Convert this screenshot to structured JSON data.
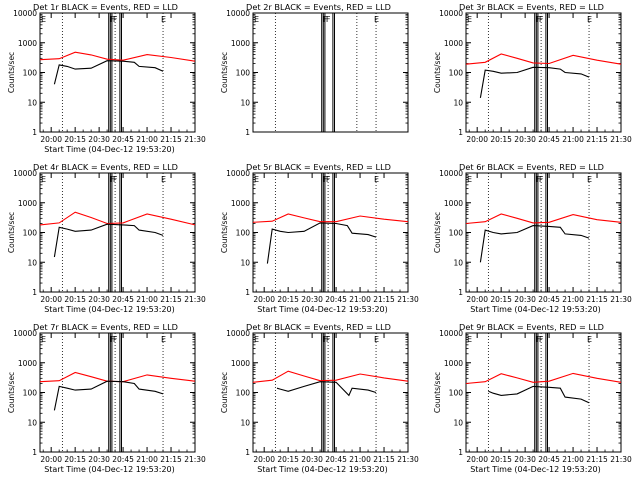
{
  "chart_data": [
    {
      "type": "line",
      "title": "Det 1r BLACK = Events, RED = LLD",
      "xlabel": "Start Time (04-Dec-12 19:53:20)",
      "ylabel": "Counts/sec",
      "yscale": "log",
      "ylim": [
        1,
        10000
      ],
      "yticks": [
        "1",
        "10",
        "100",
        "1000",
        "10000"
      ],
      "xticks": [
        "20:00",
        "20:15",
        "20:30",
        "20:45",
        "21:00",
        "21:15",
        "21:30"
      ],
      "xlim": [
        "19:53",
        "21:30"
      ],
      "vlines_dotted": [
        "20:07",
        "20:40",
        "21:10"
      ],
      "vlines_solid": [
        "20:36",
        "20:37",
        "20:38",
        "20:43",
        "20:44"
      ],
      "markers": [
        "F",
        "F",
        "E"
      ],
      "series": [
        {
          "color": "#ff0000",
          "x": [
            "19:53",
            "20:05",
            "20:15",
            "20:25",
            "20:35",
            "20:45",
            "21:00",
            "21:15",
            "21:30"
          ],
          "y": [
            270,
            290,
            480,
            390,
            280,
            260,
            400,
            320,
            240
          ]
        },
        {
          "color": "#000000",
          "x": [
            "20:02",
            "20:05",
            "20:10",
            "20:15",
            "20:25",
            "20:35",
            "20:45",
            "20:52",
            "20:55",
            "21:05",
            "21:10"
          ],
          "y": [
            40,
            180,
            160,
            130,
            140,
            250,
            240,
            220,
            160,
            145,
            110
          ]
        }
      ]
    },
    {
      "type": "line",
      "title": "Det 2r BLACK = Events, RED = LLD",
      "xlabel": "",
      "ylabel": "Counts/sec",
      "yscale": "log",
      "ylim": [
        1,
        10000
      ],
      "yticks": [
        "1",
        "10",
        "100",
        "1000",
        "10000"
      ],
      "xticks": [],
      "xlim": [
        "19:53",
        "21:30"
      ],
      "vlines_dotted": [
        "20:07",
        "20:58",
        "21:10"
      ],
      "vlines_solid": [
        "20:36",
        "20:37",
        "20:38",
        "20:43",
        "20:44"
      ],
      "markers": [
        "F",
        "F",
        "E"
      ],
      "series": []
    },
    {
      "type": "line",
      "title": "Det 3r BLACK = Events, RED = LLD",
      "xlabel": "",
      "ylabel": "Counts/sec",
      "yscale": "log",
      "ylim": [
        1,
        10000
      ],
      "yticks": [
        "1",
        "10",
        "100",
        "1000",
        "10000"
      ],
      "xticks": [
        "20:00",
        "20:15",
        "20:30",
        "20:45",
        "21:00",
        "21:15",
        "21:30"
      ],
      "xlim": [
        "19:53",
        "21:30"
      ],
      "vlines_dotted": [
        "20:07",
        "20:40",
        "21:10"
      ],
      "vlines_solid": [
        "20:36",
        "20:37",
        "20:38",
        "20:43",
        "20:44"
      ],
      "markers": [
        "F",
        "F",
        "E"
      ],
      "series": [
        {
          "color": "#ff0000",
          "x": [
            "19:53",
            "20:05",
            "20:15",
            "20:25",
            "20:35",
            "20:45",
            "21:00",
            "21:15",
            "21:30"
          ],
          "y": [
            190,
            220,
            420,
            300,
            210,
            200,
            380,
            260,
            190
          ]
        },
        {
          "color": "#000000",
          "x": [
            "20:02",
            "20:05",
            "20:10",
            "20:15",
            "20:25",
            "20:35",
            "20:45",
            "20:52",
            "20:55",
            "21:05",
            "21:10"
          ],
          "y": [
            14,
            120,
            110,
            95,
            100,
            150,
            145,
            130,
            100,
            90,
            70
          ]
        }
      ]
    },
    {
      "type": "line",
      "title": "Det 4r BLACK = Events, RED = LLD",
      "xlabel": "Start Time (04-Dec-12 19:53:20)",
      "ylabel": "Counts/sec",
      "yscale": "log",
      "ylim": [
        1,
        10000
      ],
      "yticks": [
        "1",
        "10",
        "100",
        "1000",
        "10000"
      ],
      "xticks": [
        "20:00",
        "20:15",
        "20:30",
        "20:45",
        "21:00",
        "21:15",
        "21:30"
      ],
      "xlim": [
        "19:53",
        "21:30"
      ],
      "vlines_dotted": [
        "20:07",
        "20:40",
        "21:10"
      ],
      "vlines_solid": [
        "20:36",
        "20:37",
        "20:38",
        "20:43",
        "20:44"
      ],
      "markers": [
        "F",
        "F",
        "E"
      ],
      "series": [
        {
          "color": "#ff0000",
          "x": [
            "19:53",
            "20:05",
            "20:15",
            "20:25",
            "20:35",
            "20:45",
            "21:00",
            "21:15",
            "21:30"
          ],
          "y": [
            180,
            210,
            480,
            320,
            200,
            210,
            420,
            280,
            180
          ]
        },
        {
          "color": "#000000",
          "x": [
            "20:02",
            "20:05",
            "20:10",
            "20:15",
            "20:25",
            "20:35",
            "20:45",
            "20:52",
            "20:55",
            "21:05",
            "21:10"
          ],
          "y": [
            15,
            150,
            130,
            110,
            120,
            190,
            180,
            170,
            120,
            100,
            80
          ]
        }
      ]
    },
    {
      "type": "line",
      "title": "Det 5r BLACK = Events, RED = LLD",
      "xlabel": "Start Time (04-Dec-12 19:53:20)",
      "ylabel": "Counts/sec",
      "yscale": "log",
      "ylim": [
        1,
        10000
      ],
      "yticks": [
        "1",
        "10",
        "100",
        "1000",
        "10000"
      ],
      "xticks": [
        "20:00",
        "20:15",
        "20:30",
        "20:45",
        "21:00",
        "21:15",
        "21:30"
      ],
      "xlim": [
        "19:53",
        "21:30"
      ],
      "vlines_dotted": [
        "20:07",
        "20:40",
        "21:10"
      ],
      "vlines_solid": [
        "20:36",
        "20:37",
        "20:38",
        "20:43",
        "20:44"
      ],
      "markers": [
        "F",
        "F",
        "E"
      ],
      "series": [
        {
          "color": "#ff0000",
          "x": [
            "19:53",
            "20:05",
            "20:15",
            "20:25",
            "20:35",
            "20:45",
            "21:00",
            "21:15",
            "21:30"
          ],
          "y": [
            220,
            240,
            420,
            310,
            230,
            230,
            360,
            280,
            230
          ]
        },
        {
          "color": "#000000",
          "x": [
            "20:02",
            "20:05",
            "20:10",
            "20:15",
            "20:25",
            "20:35",
            "20:45",
            "20:52",
            "20:55",
            "21:05",
            "21:10"
          ],
          "y": [
            9,
            130,
            110,
            100,
            110,
            210,
            200,
            170,
            95,
            85,
            70
          ]
        }
      ]
    },
    {
      "type": "line",
      "title": "Det 6r BLACK = Events, RED = LLD",
      "xlabel": "Start Time (04-Dec-12 19:53:20)",
      "ylabel": "Counts/sec",
      "yscale": "log",
      "ylim": [
        1,
        10000
      ],
      "yticks": [
        "1",
        "10",
        "100",
        "1000",
        "10000"
      ],
      "xticks": [
        "20:00",
        "20:15",
        "20:30",
        "20:45",
        "21:00",
        "21:15",
        "21:30"
      ],
      "xlim": [
        "19:53",
        "21:30"
      ],
      "vlines_dotted": [
        "20:07",
        "20:40",
        "21:10"
      ],
      "vlines_solid": [
        "20:36",
        "20:37",
        "20:38",
        "20:43",
        "20:44"
      ],
      "markers": [
        "F",
        "F",
        "E"
      ],
      "series": [
        {
          "color": "#ff0000",
          "x": [
            "19:53",
            "20:05",
            "20:15",
            "20:25",
            "20:35",
            "20:45",
            "21:00",
            "21:15",
            "21:30"
          ],
          "y": [
            200,
            230,
            420,
            300,
            210,
            220,
            400,
            270,
            220
          ]
        },
        {
          "color": "#000000",
          "x": [
            "20:02",
            "20:05",
            "20:10",
            "20:15",
            "20:25",
            "20:35",
            "20:45",
            "20:52",
            "20:55",
            "21:05",
            "21:10"
          ],
          "y": [
            10,
            120,
            100,
            90,
            100,
            170,
            160,
            150,
            90,
            80,
            65
          ]
        }
      ]
    },
    {
      "type": "line",
      "title": "Det 7r BLACK = Events, RED = LLD",
      "xlabel": "Start Time (04-Dec-12 19:53:20)",
      "ylabel": "Counts/sec",
      "yscale": "log",
      "ylim": [
        1,
        10000
      ],
      "yticks": [
        "1",
        "10",
        "100",
        "1000",
        "10000"
      ],
      "xticks": [
        "20:00",
        "20:15",
        "20:30",
        "20:45",
        "21:00",
        "21:15",
        "21:30"
      ],
      "xlim": [
        "19:53",
        "21:30"
      ],
      "vlines_dotted": [
        "20:07",
        "20:40",
        "21:10"
      ],
      "vlines_solid": [
        "20:36",
        "20:37",
        "20:38",
        "20:43",
        "20:44"
      ],
      "markers": [
        "F",
        "F",
        "E"
      ],
      "series": [
        {
          "color": "#ff0000",
          "x": [
            "19:53",
            "20:05",
            "20:15",
            "20:25",
            "20:35",
            "20:45",
            "21:00",
            "21:15",
            "21:30"
          ],
          "y": [
            230,
            250,
            470,
            340,
            240,
            230,
            390,
            300,
            240
          ]
        },
        {
          "color": "#000000",
          "x": [
            "20:02",
            "20:05",
            "20:10",
            "20:15",
            "20:25",
            "20:35",
            "20:45",
            "20:52",
            "20:55",
            "21:05",
            "21:10"
          ],
          "y": [
            25,
            160,
            140,
            120,
            130,
            240,
            230,
            200,
            130,
            110,
            90
          ]
        }
      ]
    },
    {
      "type": "line",
      "title": "Det 8r BLACK = Events, RED = LLD",
      "xlabel": "Start Time (04-Dec-12 19:53:20)",
      "ylabel": "Counts/sec",
      "yscale": "log",
      "ylim": [
        1,
        10000
      ],
      "yticks": [
        "1",
        "10",
        "100",
        "1000",
        "10000"
      ],
      "xticks": [
        "20:00",
        "20:15",
        "20:30",
        "20:45",
        "21:00",
        "21:15",
        "21:30"
      ],
      "xlim": [
        "19:53",
        "21:30"
      ],
      "vlines_dotted": [
        "20:07",
        "20:40",
        "21:10"
      ],
      "vlines_solid": [
        "20:36",
        "20:37",
        "20:38",
        "20:43",
        "20:44"
      ],
      "markers": [
        "F",
        "F",
        "E"
      ],
      "series": [
        {
          "color": "#ff0000",
          "x": [
            "19:53",
            "20:05",
            "20:15",
            "20:25",
            "20:35",
            "20:45",
            "21:00",
            "21:15",
            "21:30"
          ],
          "y": [
            220,
            260,
            520,
            360,
            250,
            260,
            420,
            310,
            240
          ]
        },
        {
          "color": "#000000",
          "x": [
            "20:08",
            "20:10",
            "20:15",
            "20:25",
            "20:35",
            "20:45",
            "20:53",
            "20:55",
            "21:05",
            "21:10"
          ],
          "y": [
            140,
            130,
            110,
            160,
            230,
            220,
            80,
            140,
            120,
            100
          ]
        }
      ]
    },
    {
      "type": "line",
      "title": "Det 9r BLACK = Events, RED = LLD",
      "xlabel": "Start Time (04-Dec-12 19:53:20)",
      "ylabel": "Counts/sec",
      "yscale": "log",
      "ylim": [
        1,
        10000
      ],
      "yticks": [
        "1",
        "10",
        "100",
        "1000",
        "10000"
      ],
      "xticks": [
        "20:00",
        "20:15",
        "20:30",
        "20:45",
        "21:00",
        "21:15",
        "21:30"
      ],
      "xlim": [
        "19:53",
        "21:30"
      ],
      "vlines_dotted": [
        "20:07",
        "20:40",
        "21:10"
      ],
      "vlines_solid": [
        "20:36",
        "20:37",
        "20:38",
        "20:43",
        "20:44"
      ],
      "markers": [
        "F",
        "F",
        "E"
      ],
      "series": [
        {
          "color": "#ff0000",
          "x": [
            "19:53",
            "20:05",
            "20:15",
            "20:25",
            "20:35",
            "20:45",
            "21:00",
            "21:15",
            "21:30"
          ],
          "y": [
            200,
            230,
            430,
            310,
            220,
            240,
            440,
            300,
            220
          ]
        },
        {
          "color": "#000000",
          "x": [
            "20:07",
            "20:10",
            "20:15",
            "20:25",
            "20:35",
            "20:45",
            "20:52",
            "20:55",
            "21:05",
            "21:10"
          ],
          "y": [
            110,
            95,
            80,
            90,
            160,
            150,
            140,
            70,
            60,
            45
          ]
        }
      ]
    }
  ]
}
